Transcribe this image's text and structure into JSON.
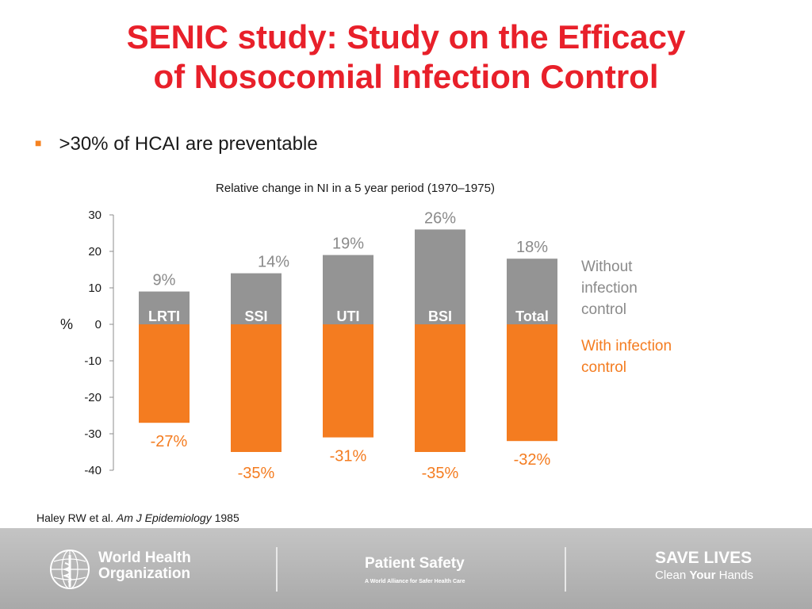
{
  "slide": {
    "title_line1": "SENIC study: Study on the Efficacy",
    "title_line2": "of Nosocomial Infection Control",
    "bullet": ">30% of HCAI are preventable",
    "citation_author": "Haley RW et al.",
    "citation_journal": "Am J Epidemiology",
    "citation_year": "1985"
  },
  "footer": {
    "who_line1": "World Health",
    "who_line2": "Organization",
    "patient_safety_title": "Patient Safety",
    "patient_safety_sub": "A World Alliance for Safer Health Care",
    "save_lives_title": "SAVE LIVES",
    "save_lives_sub_pre": "Clean",
    "save_lives_sub_bold": "Your",
    "save_lives_sub_post": "Hands"
  },
  "colors": {
    "title": "#e8202a",
    "without_control": "#949494",
    "with_control": "#f47c20",
    "label_gray": "#8a8a8a",
    "label_orange": "#f47c20"
  },
  "chart_data": {
    "type": "bar",
    "title": "Relative change in NI in a 5 year period (1970–1975)",
    "ylabel": "%",
    "ylim": [
      -40,
      30
    ],
    "yticks": [
      30,
      20,
      10,
      0,
      -10,
      -20,
      -30,
      -40
    ],
    "categories": [
      "LRTI",
      "SSI",
      "UTI",
      "BSI",
      "Total"
    ],
    "series": [
      {
        "name": "Without infection control",
        "values": [
          9,
          14,
          19,
          26,
          18
        ],
        "labels": [
          "9%",
          "14%",
          "19%",
          "26%",
          "18%"
        ]
      },
      {
        "name": "With infection control",
        "values": [
          -27,
          -35,
          -31,
          -35,
          -32
        ],
        "labels": [
          "-27%",
          "-35%",
          "-31%",
          "-35%",
          "-32%"
        ]
      }
    ],
    "legend": {
      "without_line1": "Without",
      "without_line2": "infection",
      "without_line3": "control",
      "with_line1": "With infection",
      "with_line2": "control"
    },
    "legend_position": "right",
    "grid": false
  }
}
